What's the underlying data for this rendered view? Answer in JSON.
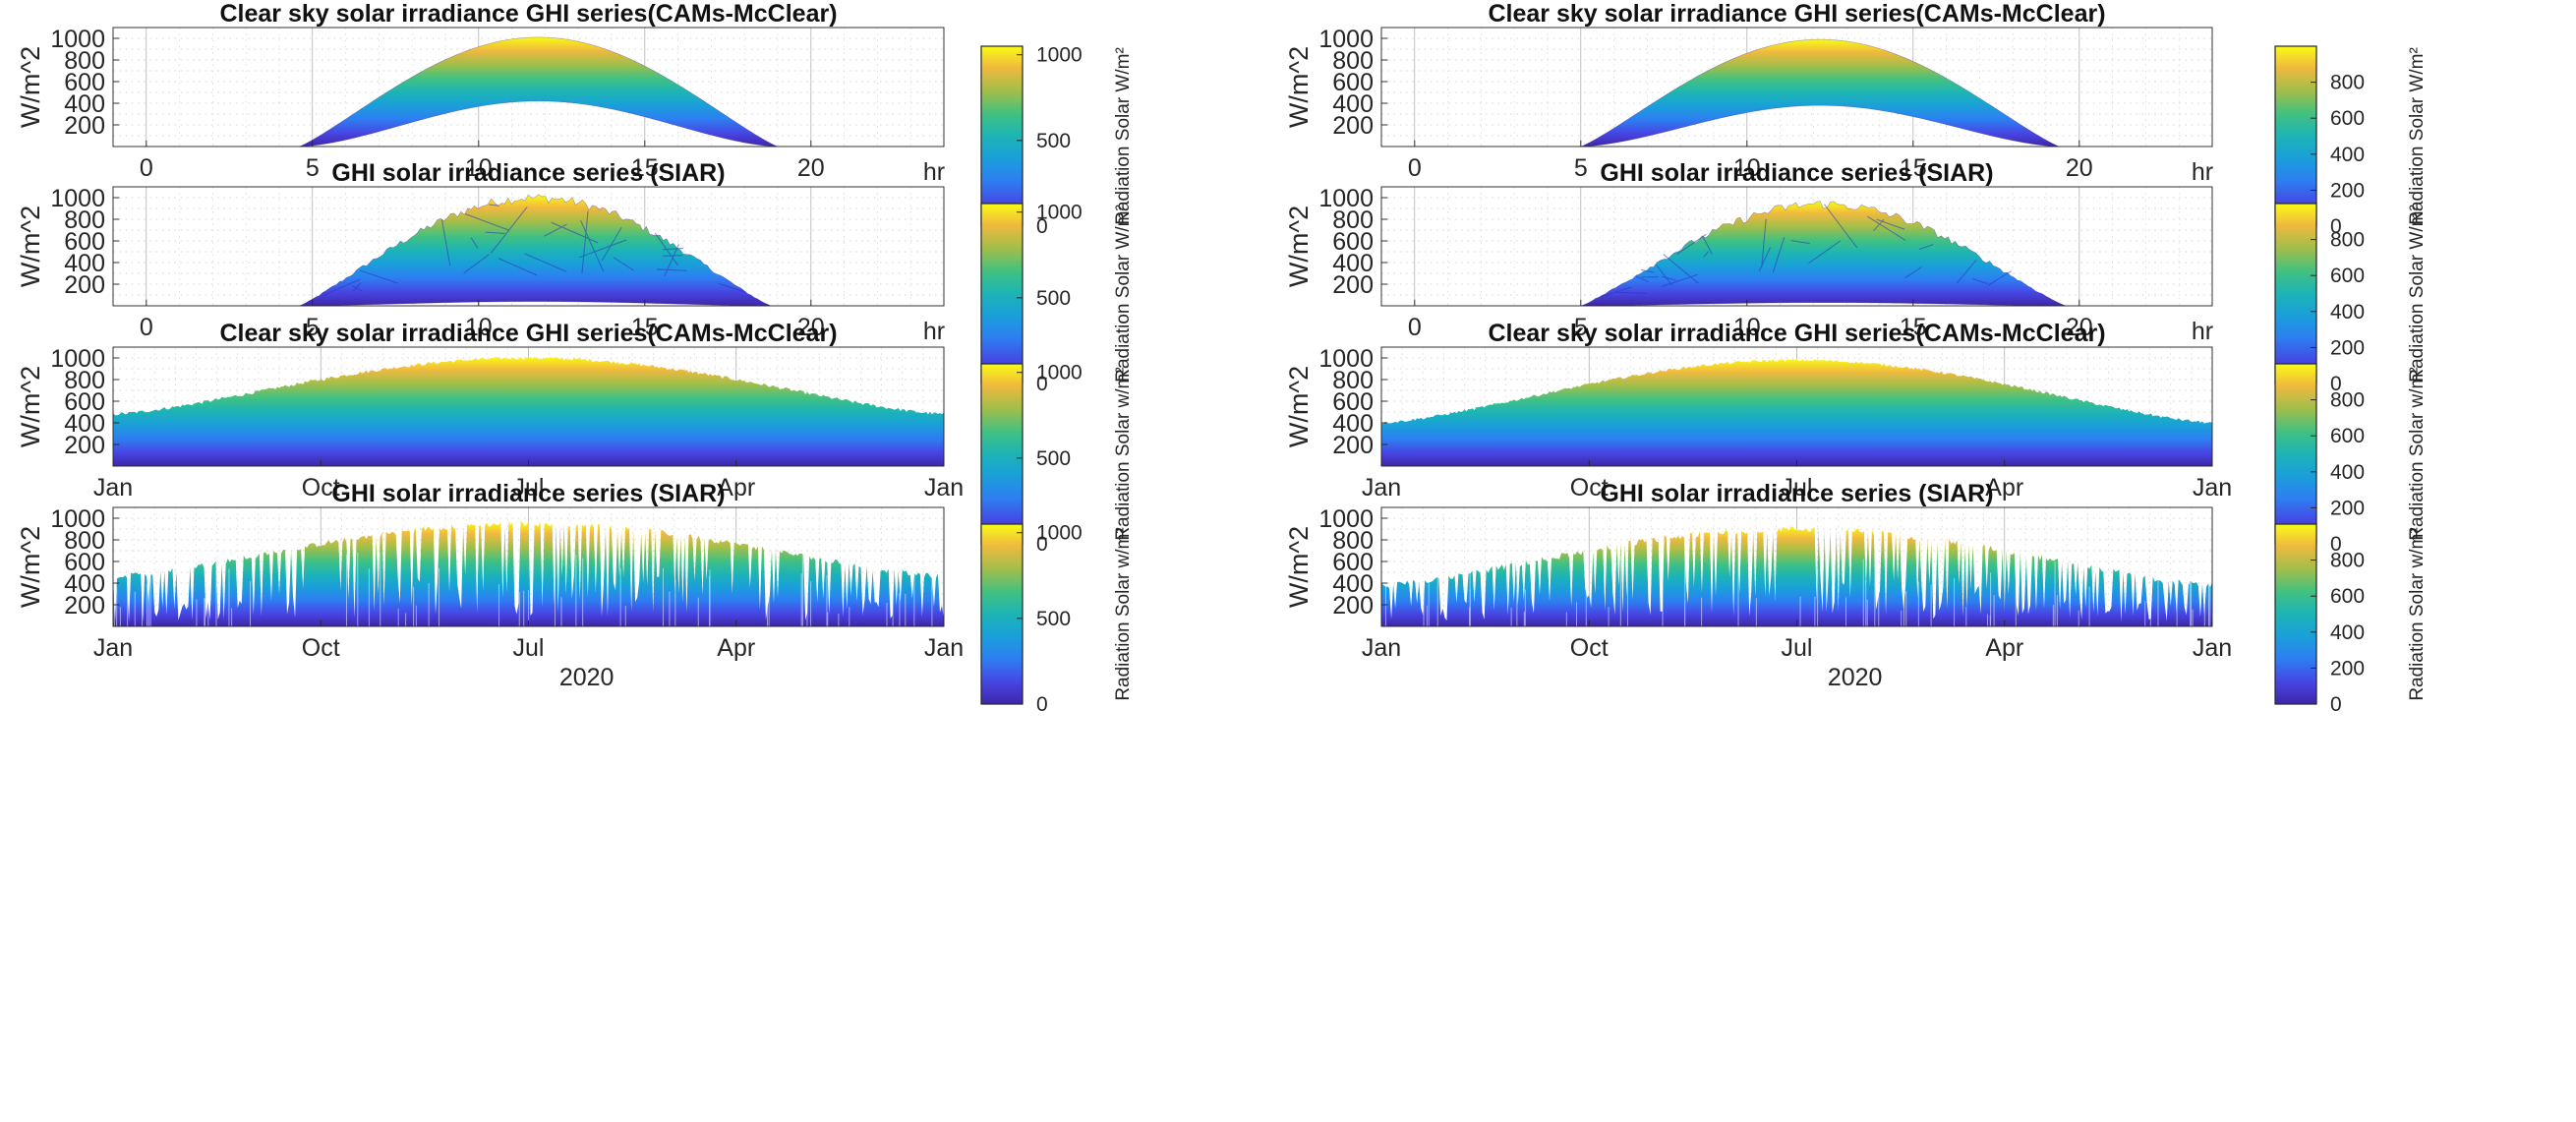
{
  "chart_data": [
    {
      "id": "L1",
      "type": "area",
      "title": "Clear sky solar irradiance GHI series(CAMs-McClear)",
      "ylabel": "W/m^2",
      "xunit": "hr",
      "xlim": [
        -1,
        24
      ],
      "ylim": [
        0,
        1100
      ],
      "xticks": [
        0,
        5,
        10,
        15,
        20
      ],
      "yticks": [
        200,
        400,
        600,
        800,
        1000
      ],
      "envelope": {
        "start": 4.6,
        "end": 19.0,
        "peak_hour": 11.8,
        "upper_peak": 1010,
        "lower_peak": 420
      },
      "colorbar": {
        "label": "Radiation Solar W/m²",
        "range": [
          0,
          1050
        ],
        "ticks": [
          "0",
          "500",
          "1000"
        ]
      }
    },
    {
      "id": "L2",
      "type": "area",
      "title": "GHI solar irradiance series (SIAR)",
      "ylabel": "W/m^2",
      "xunit": "hr",
      "xlim": [
        -1,
        24
      ],
      "ylim": [
        0,
        1100
      ],
      "xticks": [
        0,
        5,
        10,
        15,
        20
      ],
      "yticks": [
        200,
        400,
        600,
        800,
        1000
      ],
      "envelope": {
        "start": 4.6,
        "end": 18.8,
        "peak_hour": 11.8,
        "upper_peak": 1000,
        "lower_peak": 40
      },
      "colorbar": {
        "label": "Radiation Solar W/m²",
        "range": [
          0,
          1050
        ],
        "ticks": [
          "0",
          "500",
          "1000"
        ]
      }
    },
    {
      "id": "L3",
      "type": "area",
      "title": "Clear sky solar irradiance GHI series(CAMs-McClear)",
      "ylabel": "W/m^2",
      "year": "2020",
      "xticks": [
        "Jan",
        "Oct",
        "Jul",
        "Apr",
        "Jan"
      ],
      "yticks": [
        200,
        400,
        600,
        800,
        1000
      ],
      "ylim": [
        0,
        1100
      ],
      "seasonal": {
        "winter_max": 480,
        "summer_max": 1000,
        "noise": 30,
        "dips": 0
      },
      "colorbar": {
        "label": "Radiation Solar w/m²",
        "range": [
          0,
          1050
        ],
        "ticks": [
          "0",
          "500",
          "1000"
        ]
      }
    },
    {
      "id": "L4",
      "type": "area",
      "title": "GHI solar irradiance series (SIAR)",
      "ylabel": "W/m^2",
      "year": "2020",
      "xticks": [
        "Jan",
        "Oct",
        "Jul",
        "Apr",
        "Jan"
      ],
      "yticks": [
        200,
        400,
        600,
        800,
        1000
      ],
      "ylim": [
        0,
        1100
      ],
      "seasonal": {
        "winter_max": 460,
        "summer_max": 950,
        "noise": 50,
        "dips": 55
      },
      "colorbar": {
        "label": "Radiation Solar w/m²",
        "range": [
          0,
          1050
        ],
        "ticks": [
          "0",
          "500",
          "1000"
        ]
      }
    },
    {
      "id": "R1",
      "type": "area",
      "title": "Clear sky solar irradiance GHI series(CAMs-McClear)",
      "ylabel": "W/m^2",
      "xunit": "hr",
      "xlim": [
        -1,
        24
      ],
      "ylim": [
        0,
        1100
      ],
      "xticks": [
        0,
        5,
        10,
        15,
        20
      ],
      "yticks": [
        200,
        400,
        600,
        800,
        1000
      ],
      "envelope": {
        "start": 5.0,
        "end": 19.4,
        "peak_hour": 12.2,
        "upper_peak": 990,
        "lower_peak": 380
      },
      "colorbar": {
        "label": "Radiation Solar W/m²",
        "range": [
          0,
          1000
        ],
        "ticks": [
          "0",
          "200",
          "400",
          "600",
          "800"
        ]
      }
    },
    {
      "id": "R2",
      "type": "area",
      "title": "GHI solar irradiance series (SIAR)",
      "ylabel": "W/m^2",
      "xunit": "hr",
      "xlim": [
        -1,
        24
      ],
      "ylim": [
        0,
        1100
      ],
      "xticks": [
        0,
        5,
        10,
        15,
        20
      ],
      "yticks": [
        200,
        400,
        600,
        800,
        1000
      ],
      "envelope": {
        "start": 5.0,
        "end": 19.6,
        "peak_hour": 12.4,
        "upper_peak": 940,
        "lower_peak": 30
      },
      "colorbar": {
        "label": "Radiation Solar W/m²",
        "range": [
          0,
          1000
        ],
        "ticks": [
          "0",
          "200",
          "400",
          "600",
          "800"
        ]
      }
    },
    {
      "id": "R3",
      "type": "area",
      "title": "Clear sky solar irradiance GHI series(CAMs-McClear)",
      "ylabel": "W/m^2",
      "year": "2020",
      "xticks": [
        "Jan",
        "Oct",
        "Jul",
        "Apr",
        "Jan"
      ],
      "yticks": [
        200,
        400,
        600,
        800,
        1000
      ],
      "ylim": [
        0,
        1100
      ],
      "seasonal": {
        "winter_max": 400,
        "summer_max": 980,
        "noise": 25,
        "dips": 0
      },
      "colorbar": {
        "label": "Radiation Solar w/m²",
        "range": [
          0,
          1000
        ],
        "ticks": [
          "0",
          "200",
          "400",
          "600",
          "800"
        ]
      }
    },
    {
      "id": "R4",
      "type": "area",
      "title": "GHI solar irradiance series (SIAR)",
      "ylabel": "W/m^2",
      "year": "2020",
      "xticks": [
        "Jan",
        "Oct",
        "Jul",
        "Apr",
        "Jan"
      ],
      "yticks": [
        200,
        400,
        600,
        800,
        1000
      ],
      "ylim": [
        0,
        1100
      ],
      "seasonal": {
        "winter_max": 380,
        "summer_max": 900,
        "noise": 60,
        "dips": 70
      },
      "colorbar": {
        "label": "Radiation Solar w/m²",
        "range": [
          0,
          1000
        ],
        "ticks": [
          "0",
          "200",
          "400",
          "600",
          "800"
        ]
      }
    }
  ]
}
